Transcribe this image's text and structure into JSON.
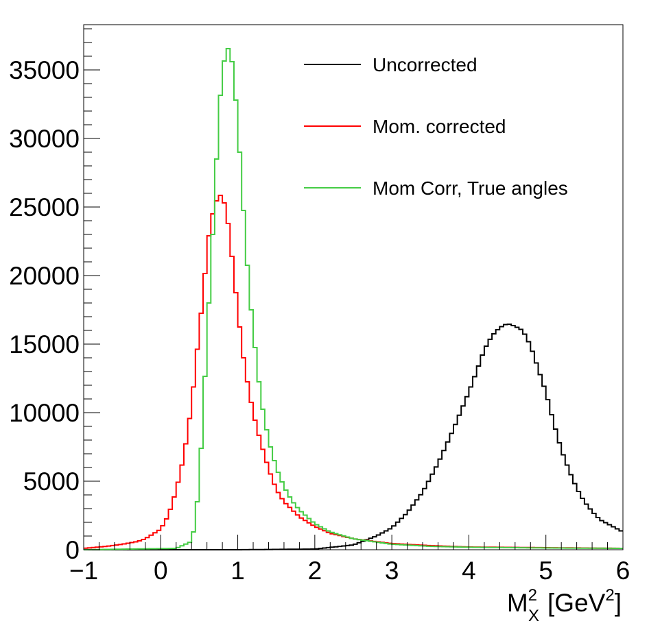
{
  "chart_data": {
    "type": "line",
    "title": "",
    "xlabel": {
      "base": "M",
      "superscript": "2",
      "subscript": "X",
      "unit_prefix": "[GeV",
      "unit_superscript": "2",
      "unit_suffix": "]"
    },
    "ylabel": "",
    "xlim": [
      -1,
      6
    ],
    "ylim": [
      0,
      38300
    ],
    "x_ticks": [
      -1,
      0,
      1,
      2,
      3,
      4,
      5,
      6
    ],
    "x_tick_labels": [
      "−1",
      "0",
      "1",
      "2",
      "3",
      "4",
      "5",
      "6"
    ],
    "y_ticks": [
      0,
      5000,
      10000,
      15000,
      20000,
      25000,
      30000,
      35000
    ],
    "y_tick_labels": [
      "0",
      "5000",
      "10000",
      "15000",
      "20000",
      "25000",
      "30000",
      "35000"
    ],
    "grid": false,
    "legend_position": "top-right",
    "series": [
      {
        "name": "Uncorrected",
        "color": "#000000",
        "x": [
          -1.0,
          0.0,
          1.0,
          2.0,
          2.5,
          2.8,
          3.0,
          3.2,
          3.4,
          3.6,
          3.8,
          4.0,
          4.1,
          4.2,
          4.3,
          4.4,
          4.5,
          4.6,
          4.7,
          4.8,
          4.9,
          5.0,
          5.1,
          5.2,
          5.3,
          5.4,
          5.5,
          5.6,
          5.7,
          5.8,
          5.9,
          6.0
        ],
        "values": [
          0,
          0,
          0,
          50,
          350,
          1000,
          1600,
          2700,
          4200,
          6300,
          8800,
          11500,
          13000,
          14600,
          15600,
          16200,
          16500,
          16300,
          16000,
          14900,
          13200,
          11500,
          9300,
          7300,
          5800,
          4500,
          3500,
          2800,
          2200,
          1900,
          1600,
          1300
        ]
      },
      {
        "name": "Mom. corrected",
        "color": "#ff0000",
        "x": [
          -1.0,
          -0.7,
          -0.5,
          -0.3,
          -0.2,
          0.0,
          0.1,
          0.2,
          0.3,
          0.4,
          0.5,
          0.55,
          0.6,
          0.65,
          0.7,
          0.75,
          0.8,
          0.85,
          0.9,
          0.95,
          1.0,
          1.05,
          1.1,
          1.2,
          1.3,
          1.4,
          1.5,
          1.6,
          1.8,
          2.0,
          2.2,
          2.5,
          3.0,
          3.5,
          4.0,
          5.0,
          6.0
        ],
        "values": [
          100,
          250,
          400,
          600,
          800,
          1500,
          2500,
          4300,
          6800,
          10500,
          16000,
          18500,
          21800,
          24000,
          25000,
          25900,
          25800,
          24800,
          22800,
          20000,
          17500,
          15000,
          13000,
          10000,
          7800,
          5900,
          4400,
          3500,
          2400,
          1700,
          1200,
          800,
          450,
          300,
          200,
          150,
          100
        ]
      },
      {
        "name": "Mom Corr, True angles",
        "color": "#44cc44",
        "x": [
          -1.0,
          0.2,
          0.4,
          0.45,
          0.5,
          0.55,
          0.6,
          0.65,
          0.7,
          0.75,
          0.8,
          0.85,
          0.9,
          0.95,
          1.0,
          1.05,
          1.1,
          1.15,
          1.2,
          1.3,
          1.4,
          1.5,
          1.6,
          1.7,
          1.8,
          2.0,
          2.2,
          2.5,
          3.0,
          3.5,
          4.0,
          5.0,
          6.0
        ],
        "values": [
          0,
          100,
          600,
          2000,
          5000,
          9800,
          15500,
          20500,
          25500,
          31500,
          34800,
          36500,
          36600,
          34600,
          31000,
          27000,
          22500,
          19000,
          16000,
          11000,
          8000,
          6000,
          4600,
          3600,
          2900,
          1900,
          1300,
          800,
          400,
          250,
          180,
          130,
          100
        ]
      }
    ]
  }
}
